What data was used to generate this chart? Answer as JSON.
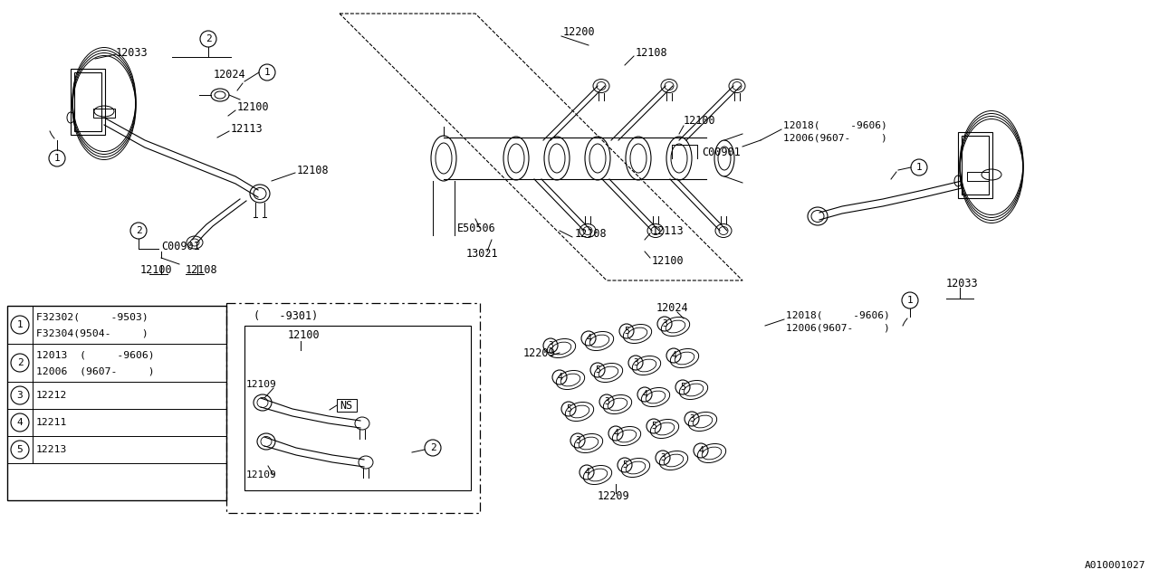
{
  "background_color": "#ffffff",
  "line_color": "#000000",
  "diagram_id": "A010001027",
  "legend_rows": [
    {
      "num": "1",
      "parts": [
        "F32302(     -9503)",
        "F32304(9504-     )"
      ]
    },
    {
      "num": "2",
      "parts": [
        "12013  (     -9606)",
        "12006  (9607-     )"
      ]
    },
    {
      "num": "3",
      "parts": [
        "12212"
      ]
    },
    {
      "num": "4",
      "parts": [
        "12211"
      ]
    },
    {
      "num": "5",
      "parts": [
        "12213"
      ]
    }
  ]
}
